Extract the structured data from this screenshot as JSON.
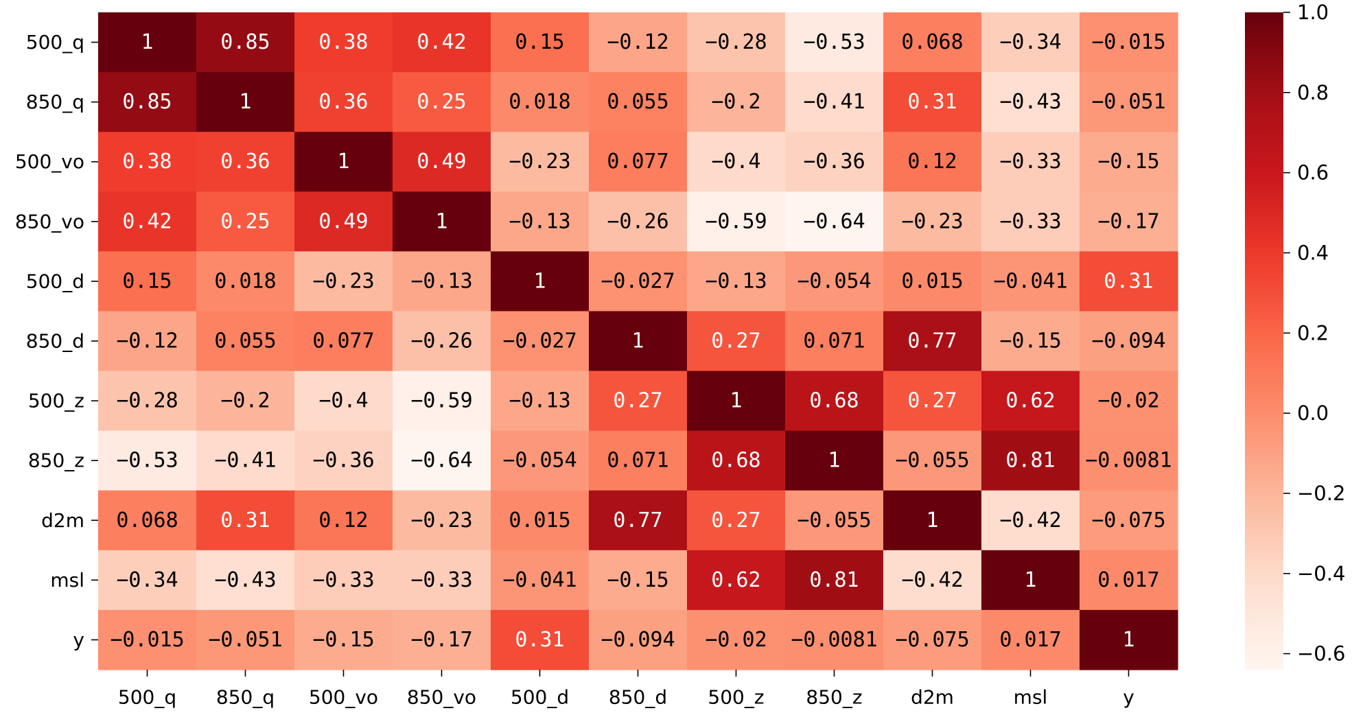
{
  "chart_data": {
    "type": "heatmap",
    "title": "",
    "xlabel": "",
    "ylabel": "",
    "colormap": "Reds",
    "vmin": -0.64,
    "vmax": 1.0,
    "x_labels": [
      "500_q",
      "850_q",
      "500_vo",
      "850_vo",
      "500_d",
      "850_d",
      "500_z",
      "850_z",
      "d2m",
      "msl",
      "y"
    ],
    "y_labels": [
      "500_q",
      "850_q",
      "500_vo",
      "850_vo",
      "500_d",
      "850_d",
      "500_z",
      "850_z",
      "d2m",
      "msl",
      "y"
    ],
    "values": [
      [
        1,
        0.85,
        0.38,
        0.42,
        0.15,
        -0.12,
        -0.28,
        -0.53,
        0.068,
        -0.34,
        -0.015
      ],
      [
        0.85,
        1,
        0.36,
        0.25,
        0.018,
        0.055,
        -0.2,
        -0.41,
        0.31,
        -0.43,
        -0.051
      ],
      [
        0.38,
        0.36,
        1,
        0.49,
        -0.23,
        0.077,
        -0.4,
        -0.36,
        0.12,
        -0.33,
        -0.15
      ],
      [
        0.42,
        0.25,
        0.49,
        1,
        -0.13,
        -0.26,
        -0.59,
        -0.64,
        -0.23,
        -0.33,
        -0.17
      ],
      [
        0.15,
        0.018,
        -0.23,
        -0.13,
        1,
        -0.027,
        -0.13,
        -0.054,
        0.015,
        -0.041,
        0.31
      ],
      [
        -0.12,
        0.055,
        0.077,
        -0.26,
        -0.027,
        1,
        0.27,
        0.071,
        0.77,
        -0.15,
        -0.094
      ],
      [
        -0.28,
        -0.2,
        -0.4,
        -0.59,
        -0.13,
        0.27,
        1,
        0.68,
        0.27,
        0.62,
        -0.02
      ],
      [
        -0.53,
        -0.41,
        -0.36,
        -0.64,
        -0.054,
        0.071,
        0.68,
        1,
        -0.055,
        0.81,
        -0.0081
      ],
      [
        0.068,
        0.31,
        0.12,
        -0.23,
        0.015,
        0.77,
        0.27,
        -0.055,
        1,
        -0.42,
        -0.075
      ],
      [
        -0.34,
        -0.43,
        -0.33,
        -0.33,
        -0.041,
        -0.15,
        0.62,
        0.81,
        -0.42,
        1,
        0.017
      ],
      [
        -0.015,
        -0.051,
        -0.15,
        -0.17,
        0.31,
        -0.094,
        -0.02,
        -0.0081,
        -0.075,
        0.017,
        1
      ]
    ],
    "colorbar_ticks": [
      1.0,
      0.8,
      0.6,
      0.4,
      0.2,
      0.0,
      -0.2,
      -0.4,
      -0.6
    ],
    "colorbar_tick_labels": [
      "1.0",
      "0.8",
      "0.6",
      "0.4",
      "0.2",
      "0.0",
      "-0.2",
      "-0.4",
      "-0.6"
    ]
  }
}
